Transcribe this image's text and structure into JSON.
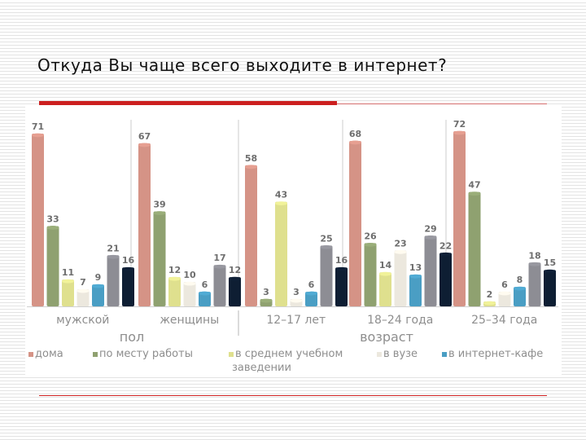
{
  "slide": {
    "title": "Откуда Вы чаще всего выходите в интернет?"
  },
  "chart_data": {
    "type": "bar",
    "title": "",
    "xlabel": "",
    "ylabel": "",
    "ylim": [
      0,
      72
    ],
    "grid": false,
    "legend_position": "bottom",
    "categories": [
      "мужской",
      "женщины",
      "12–17 лет",
      "18–24 года",
      "25–34 года"
    ],
    "groups": [
      {
        "label": "пол",
        "categories": [
          "мужской",
          "женщины"
        ]
      },
      {
        "label": "возраст",
        "categories": [
          "12–17 лет",
          "18–24 года",
          "25–34 года"
        ]
      }
    ],
    "series": [
      {
        "name": "дома",
        "color": "#d59386",
        "values": [
          71,
          67,
          58,
          68,
          72
        ]
      },
      {
        "name": "по месту работы",
        "color": "#8fa170",
        "values": [
          33,
          39,
          3,
          26,
          47
        ]
      },
      {
        "name": "в среднем учебном заведении",
        "color": "#dfe08e",
        "values": [
          11,
          12,
          43,
          14,
          2
        ]
      },
      {
        "name": "в вузе",
        "color": "#ece8de",
        "values": [
          7,
          10,
          3,
          23,
          6
        ]
      },
      {
        "name": "в интернет-кафе",
        "color": "#4a9ec4",
        "values": [
          9,
          6,
          6,
          13,
          8
        ]
      },
      {
        "name": "",
        "color": "#8d8d94",
        "values": [
          21,
          17,
          25,
          29,
          18
        ]
      },
      {
        "name": "",
        "color": "#0e1e33",
        "values": [
          16,
          12,
          16,
          22,
          15
        ]
      }
    ]
  }
}
